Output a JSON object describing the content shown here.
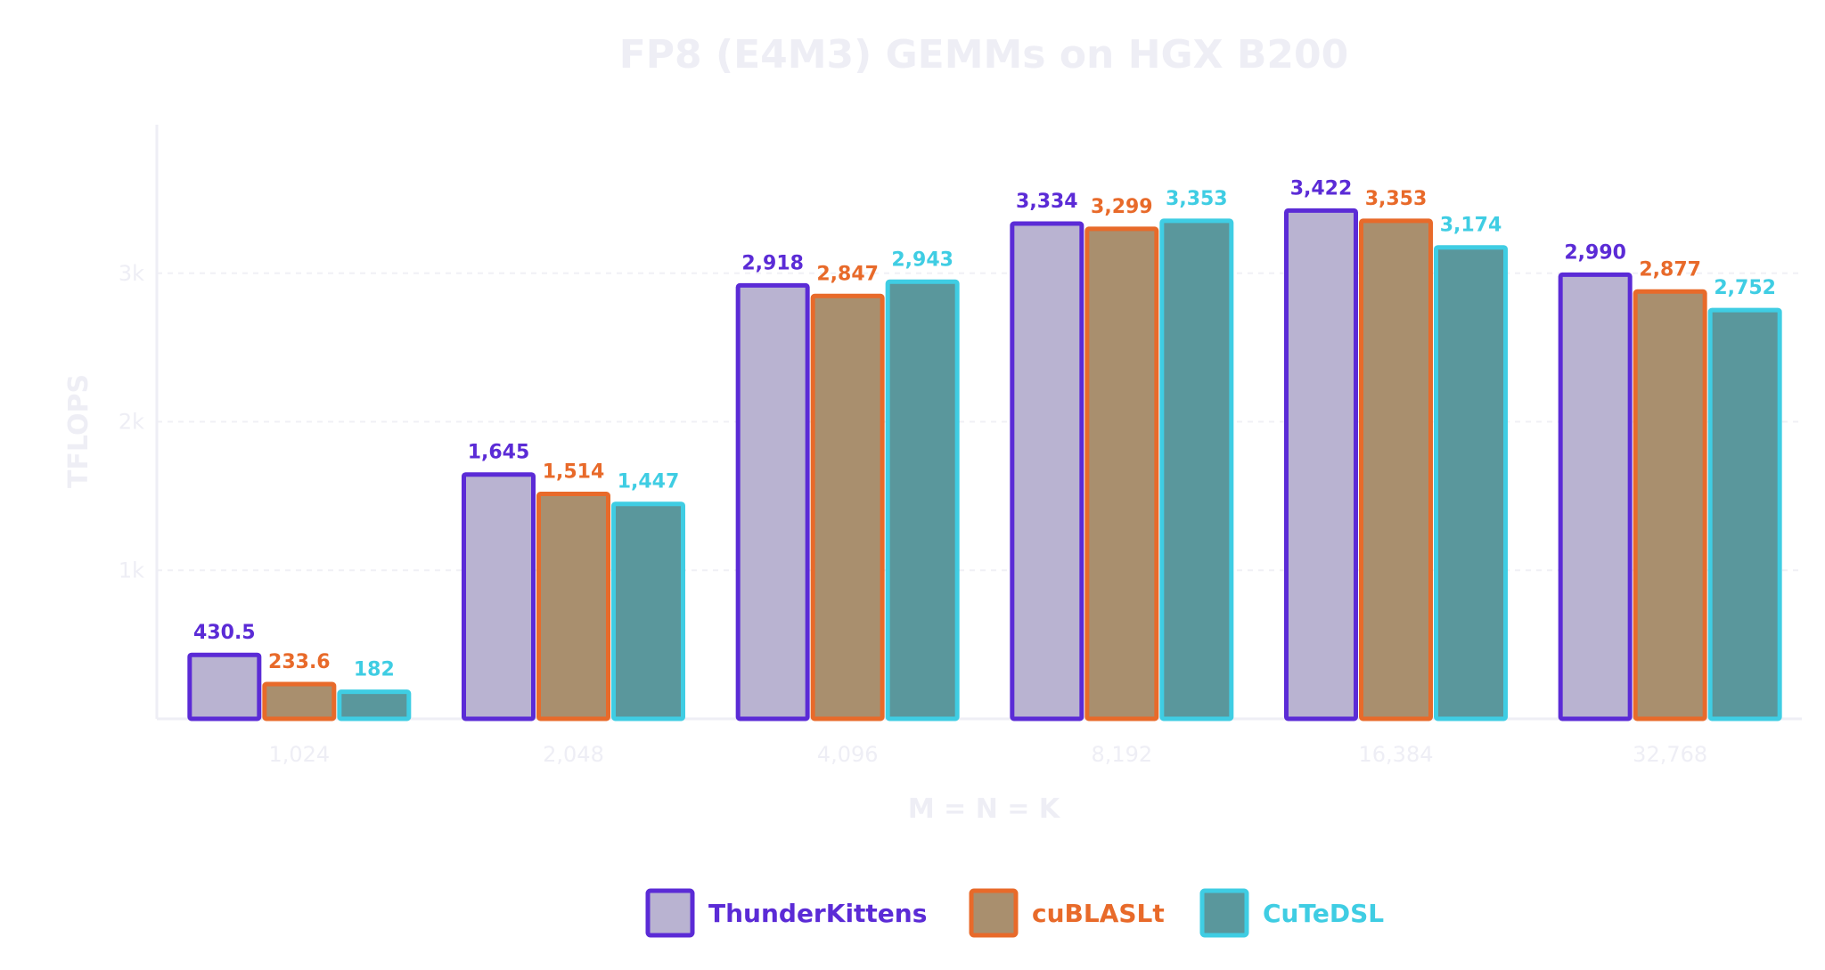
{
  "chart_data": {
    "type": "bar",
    "title": "FP8 (E4M3) GEMMs on HGX B200",
    "xlabel": "M = N = K",
    "ylabel": "TFLOPS",
    "categories": [
      "1,024",
      "2,048",
      "4,096",
      "8,192",
      "16,384",
      "32,768"
    ],
    "ylim": [
      0,
      4000
    ],
    "yticks": [
      {
        "value": 1000,
        "label": "1k"
      },
      {
        "value": 2000,
        "label": "2k"
      },
      {
        "value": 3000,
        "label": "3k"
      }
    ],
    "grid": true,
    "legend_position": "bottom",
    "series": [
      {
        "name": "ThunderKittens",
        "values": [
          430.5,
          1645,
          2918,
          3334,
          3422,
          2990
        ],
        "labels": [
          "430.5",
          "1,645",
          "2,918",
          "3,334",
          "3,422",
          "2,990"
        ],
        "fill": "#b9b3d1",
        "stroke": "#5b2bd6"
      },
      {
        "name": "cuBLASLt",
        "values": [
          233.6,
          1514,
          2847,
          3299,
          3353,
          2877
        ],
        "labels": [
          "233.6",
          "1,514",
          "2,847",
          "3,299",
          "3,353",
          "2,877"
        ],
        "fill": "#a98f6e",
        "stroke": "#e86a2a"
      },
      {
        "name": "CuTeDSL",
        "values": [
          182,
          1447,
          2943,
          3353,
          3174,
          2752
        ],
        "labels": [
          "182",
          "1,447",
          "2,943",
          "3,353",
          "3,174",
          "2,752"
        ],
        "fill": "#5a979c",
        "stroke": "#3fcde3"
      }
    ],
    "colors": {
      "faint_text": "#eeeef5",
      "grid": "#f0f0f5",
      "axis": "#eeeef5"
    }
  }
}
